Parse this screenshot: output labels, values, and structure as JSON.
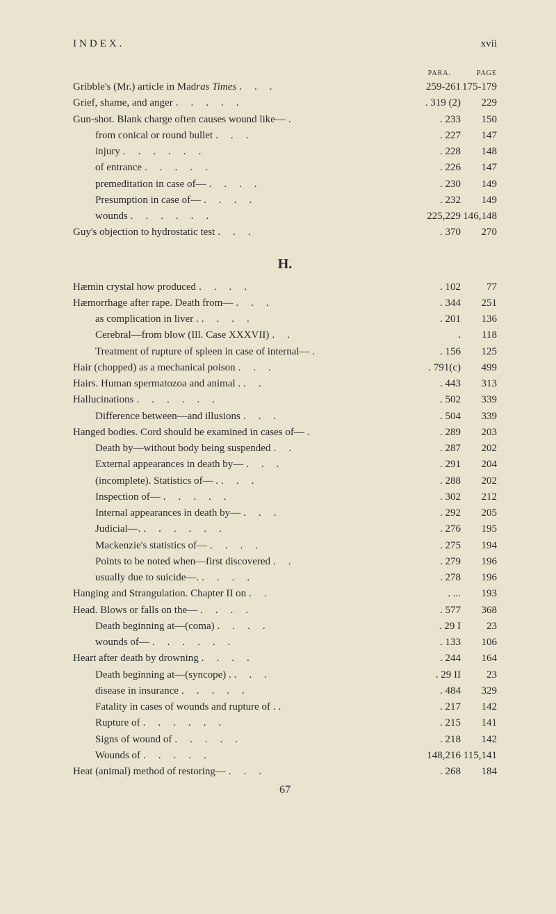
{
  "header": {
    "left": "INDEX.",
    "right": "xvii"
  },
  "colHeaders": {
    "para": "PARA.",
    "page": "PAGE"
  },
  "sectionH": "H.",
  "footer": "67",
  "entries1": [
    {
      "text": "Gribble's (Mr.) article in Madras Times",
      "indent": 0,
      "dots": 3,
      "para": "259-261",
      "page": "175-179",
      "italicStart": 30,
      "italicEnd": 42
    },
    {
      "text": "Grief, shame, and anger",
      "indent": 0,
      "dots": 5,
      "para": ". 319 (2)",
      "page": "229"
    },
    {
      "text": "Gun-shot.  Blank charge often causes wound like—",
      "indent": 0,
      "dots": 1,
      "para": ". 233",
      "page": "150"
    },
    {
      "text": "from conical or round bullet",
      "indent": 1,
      "dots": 3,
      "para": ". 227",
      "page": "147"
    },
    {
      "text": "injury",
      "indent": 1,
      "dots": 6,
      "para": ". 228",
      "page": "148"
    },
    {
      "text": "of entrance",
      "indent": 1,
      "dots": 5,
      "para": ". 226",
      "page": "147"
    },
    {
      "text": "premeditation in case of—",
      "indent": 1,
      "dots": 4,
      "para": ". 230",
      "page": "149"
    },
    {
      "text": "Presumption in case of—",
      "indent": 1,
      "dots": 4,
      "para": ". 232",
      "page": "149"
    },
    {
      "text": "wounds",
      "indent": 1,
      "dots": 6,
      "para": "225,229",
      "page": "146,148"
    },
    {
      "text": "Guy's objection to hydrostatic test",
      "indent": 0,
      "dots": 3,
      "para": ". 370",
      "page": "270"
    }
  ],
  "entries2": [
    {
      "text": "Hæmin crystal how produced",
      "indent": 0,
      "dots": 4,
      "para": ". 102",
      "page": "77"
    },
    {
      "text": "Hæmorrhage after rape.  Death from—",
      "indent": 0,
      "dots": 3,
      "para": ". 344",
      "page": "251"
    },
    {
      "text": "as complication in liver .",
      "indent": 1,
      "dots": 4,
      "para": ". 201",
      "page": "136"
    },
    {
      "text": "Cerebral—from blow (Ill. Case XXXVII)",
      "indent": 1,
      "dots": 2,
      "para": ".",
      "page": "118"
    },
    {
      "text": "Treatment of rupture of spleen in case of internal— .",
      "indent": 1,
      "dots": 0,
      "para": ". 156",
      "page": "125"
    },
    {
      "text": "Hair (chopped) as a mechanical poison",
      "indent": 0,
      "dots": 3,
      "para": ". 791(c)",
      "page": "499"
    },
    {
      "text": "Hairs.  Human spermatozoa and animal .",
      "indent": 0,
      "dots": 2,
      "para": ". 443",
      "page": "313"
    },
    {
      "text": "Hallucinations",
      "indent": 0,
      "dots": 6,
      "para": ". 502",
      "page": "339"
    },
    {
      "text": "Difference between—and illusions",
      "indent": 1,
      "dots": 3,
      "para": ". 504",
      "page": "339"
    },
    {
      "text": "Hanged bodies.  Cord should be examined in cases of— .",
      "indent": 0,
      "dots": 0,
      "para": ". 289",
      "page": "203"
    },
    {
      "text": "Death by—without body being suspended",
      "indent": 1,
      "dots": 2,
      "para": ". 287",
      "page": "202"
    },
    {
      "text": "External appearances in death by—",
      "indent": 1,
      "dots": 3,
      "para": ". 291",
      "page": "204"
    },
    {
      "text": "(incomplete).  Statistics of—  .",
      "indent": 1,
      "dots": 3,
      "para": ". 288",
      "page": "202"
    },
    {
      "text": "Inspection of—",
      "indent": 1,
      "dots": 5,
      "para": ". 302",
      "page": "212"
    },
    {
      "text": "Internal appearances in death by—",
      "indent": 1,
      "dots": 3,
      "para": ". 292",
      "page": "205"
    },
    {
      "text": "Judicial—.",
      "indent": 1,
      "dots": 6,
      "para": ". 276",
      "page": "195"
    },
    {
      "text": "Mackenzie's statistics of—",
      "indent": 1,
      "dots": 4,
      "para": ". 275",
      "page": "194"
    },
    {
      "text": "Points to be noted when—first discovered",
      "indent": 1,
      "dots": 2,
      "para": ". 279",
      "page": "196"
    },
    {
      "text": "usually due to suicide—.",
      "indent": 1,
      "dots": 4,
      "para": ". 278",
      "page": "196"
    },
    {
      "text": "Hanging and Strangulation.  Chapter II on",
      "indent": 0,
      "dots": 2,
      "para": ". ...",
      "page": "193"
    },
    {
      "text": "Head.  Blows or falls on the—",
      "indent": 0,
      "dots": 4,
      "para": ". 577",
      "page": "368"
    },
    {
      "text": "Death beginning at—(coma)",
      "indent": 1,
      "dots": 4,
      "para": ". 29 I",
      "page": "23"
    },
    {
      "text": "wounds of—",
      "indent": 1,
      "dots": 6,
      "para": ". 133",
      "page": "106"
    },
    {
      "text": "Heart after death by drowning",
      "indent": 0,
      "dots": 4,
      "para": ". 244",
      "page": "164"
    },
    {
      "text": "Death beginning at—(syncope) .",
      "indent": 1,
      "dots": 3,
      "para": ". 29 II",
      "page": "23"
    },
    {
      "text": "disease in insurance",
      "indent": 1,
      "dots": 5,
      "para": ". 484",
      "page": "329"
    },
    {
      "text": "Fatality in cases of wounds and rupture of .",
      "indent": 1,
      "dots": 1,
      "para": ". 217",
      "page": "142"
    },
    {
      "text": "Rupture of",
      "indent": 1,
      "dots": 6,
      "para": ". 215",
      "page": "141"
    },
    {
      "text": "Signs of wound of",
      "indent": 1,
      "dots": 5,
      "para": ". 218",
      "page": "142"
    },
    {
      "text": "Wounds of",
      "indent": 1,
      "dots": 5,
      "para": "148,216",
      "page": "115,141"
    },
    {
      "text": "Heat (animal) method of restoring—",
      "indent": 0,
      "dots": 3,
      "para": ". 268",
      "page": "184"
    }
  ]
}
